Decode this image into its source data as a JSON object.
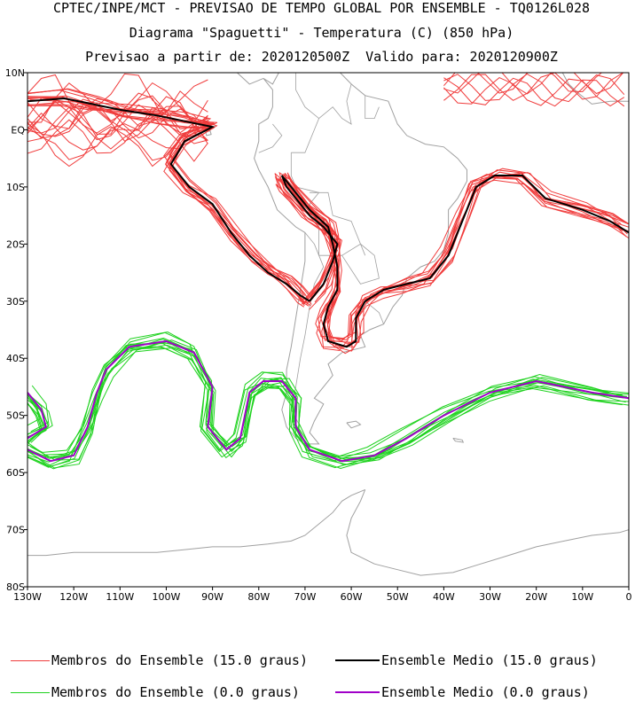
{
  "header": {
    "line1": "CPTEC/INPE/MCT - PREVISAO DE TEMPO GLOBAL POR ENSEMBLE - TQ0126L028",
    "line2": "Diagrama \"Spaguetti\" - Temperatura (C) (850 hPa)",
    "line3": "Previsao a partir de: 2020120500Z  Valido para: 2020120900Z"
  },
  "legend": [
    {
      "label": "Membros do Ensemble (15.0 graus)",
      "color": "#f03c3c"
    },
    {
      "label": "Ensemble Medio (15.0 graus)",
      "color": "#000000"
    },
    {
      "label": "Membros do Ensemble (0.0 graus)",
      "color": "#1ed21e"
    },
    {
      "label": "Ensemble Medio (0.0 graus)",
      "color": "#a000c8"
    }
  ],
  "colors": {
    "coast": "#a0a0a0",
    "members15": "#f03c3c",
    "mean15": "#000000",
    "members0": "#1ed21e",
    "mean0": "#a000c8"
  },
  "chart_data": {
    "type": "line",
    "x_ticks": [
      "130W",
      "120W",
      "110W",
      "100W",
      "90W",
      "80W",
      "70W",
      "60W",
      "50W",
      "40W",
      "30W",
      "20W",
      "10W",
      "0"
    ],
    "y_ticks": [
      "10N",
      "EQ",
      "10S",
      "20S",
      "30S",
      "40S",
      "50S",
      "60S",
      "70S",
      "80S"
    ],
    "xlim": [
      -130,
      0
    ],
    "ylim": [
      -80,
      10
    ],
    "series": [
      {
        "name": "Ensemble Medio (15.0 graus)",
        "segments": [
          [
            [
              -130,
              5
            ],
            [
              -122,
              5.5
            ],
            [
              -116,
              4.5
            ],
            [
              -110,
              3.5
            ],
            [
              -102,
              2.5
            ],
            [
              -96,
              1.5
            ],
            [
              -90,
              0.5
            ],
            [
              -96,
              -2
            ],
            [
              -99,
              -6
            ],
            [
              -95,
              -10
            ],
            [
              -90,
              -13
            ],
            [
              -86,
              -18
            ],
            [
              -82,
              -22
            ],
            [
              -78,
              -25
            ],
            [
              -74,
              -27
            ],
            [
              -71,
              -29
            ],
            [
              -69,
              -30
            ]
          ],
          [
            [
              -69,
              -30
            ],
            [
              -66,
              -27
            ],
            [
              -64,
              -23
            ],
            [
              -63,
              -20
            ],
            [
              -66,
              -17
            ],
            [
              -69,
              -15
            ],
            [
              -74,
              -10
            ],
            [
              -75,
              -8
            ],
            [
              -73,
              -10
            ],
            [
              -69,
              -14
            ],
            [
              -65,
              -17
            ],
            [
              -64,
              -20
            ],
            [
              -63,
              -24
            ],
            [
              -63,
              -28
            ],
            [
              -65,
              -31
            ],
            [
              -66,
              -34
            ],
            [
              -65,
              -37
            ],
            [
              -61,
              -38
            ],
            [
              -59,
              -37
            ],
            [
              -59,
              -33
            ],
            [
              -57,
              -30
            ],
            [
              -53,
              -28
            ],
            [
              -48,
              -27
            ],
            [
              -43,
              -26
            ],
            [
              -39,
              -22
            ],
            [
              -36,
              -16
            ],
            [
              -33,
              -10
            ],
            [
              -29,
              -8
            ],
            [
              -23,
              -8
            ],
            [
              -18,
              -12
            ],
            [
              -10,
              -14
            ],
            [
              -4,
              -16
            ],
            [
              0,
              -18
            ]
          ]
        ]
      },
      {
        "name": "Ensemble Medio (0.0 graus)",
        "segments": [
          [
            [
              -130,
              -56
            ],
            [
              -125,
              -58
            ],
            [
              -120,
              -57
            ],
            [
              -117,
              -52
            ],
            [
              -115,
              -46
            ],
            [
              -113,
              -42
            ],
            [
              -108,
              -38
            ],
            [
              -100,
              -37
            ],
            [
              -94,
              -39
            ],
            [
              -90,
              -45
            ],
            [
              -91,
              -52
            ],
            [
              -87,
              -56
            ],
            [
              -84,
              -54
            ],
            [
              -82,
              -46
            ],
            [
              -79,
              -44
            ],
            [
              -75,
              -44
            ],
            [
              -72,
              -47
            ],
            [
              -72,
              -52
            ],
            [
              -69,
              -56
            ],
            [
              -62,
              -58
            ],
            [
              -55,
              -57
            ],
            [
              -48,
              -54
            ],
            [
              -40,
              -50
            ],
            [
              -30,
              -46
            ],
            [
              -20,
              -44
            ],
            [
              -8,
              -46
            ],
            [
              0,
              -47
            ]
          ],
          [
            [
              -130,
              -46
            ],
            [
              -127,
              -49
            ],
            [
              -126,
              -52
            ],
            [
              -130,
              -54
            ]
          ]
        ]
      }
    ]
  }
}
